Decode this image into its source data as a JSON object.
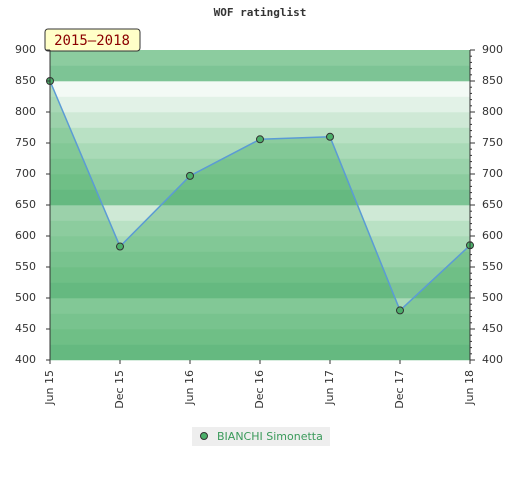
{
  "chart_data": {
    "type": "area",
    "title": "WOF ratinglist",
    "annotation": "2015–2018",
    "categories": [
      "Jun 15",
      "Dec 15",
      "Jun 16",
      "Dec 16",
      "Jun 17",
      "Dec 17",
      "Jun 18"
    ],
    "series": [
      {
        "name": "BIANCHI Simonetta",
        "color": "#5b9bd5",
        "values": [
          850,
          583,
          697,
          756,
          760,
          480,
          585
        ]
      }
    ],
    "ylim": [
      400,
      900
    ],
    "yticks": [
      400,
      450,
      500,
      550,
      600,
      650,
      700,
      750,
      800,
      850,
      900
    ]
  }
}
